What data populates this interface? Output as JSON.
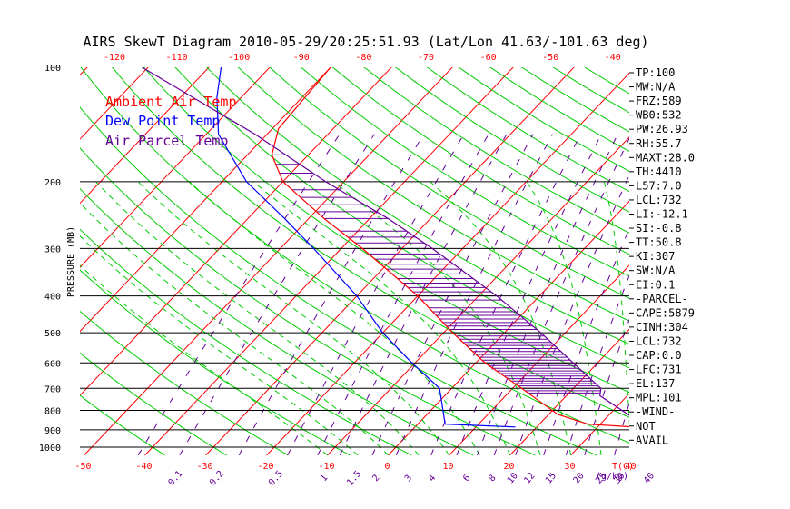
{
  "chart_data": {
    "type": "line",
    "title": "AIRS SkewT Diagram 2010-05-29/20:25:51.93 (Lat/Lon 41.63/-101.63 deg)",
    "ylabel": "PRESSURE (MB)",
    "xlabel": "T(C)",
    "mixing_ratio_unit": "(g/kg)",
    "y_scale": "log",
    "ylim": [
      1000,
      100
    ],
    "pressure_ticks": [
      100,
      200,
      300,
      400,
      500,
      600,
      700,
      800,
      900,
      1000
    ],
    "bottom_temperature_ticks": [
      -50,
      -40,
      -30,
      -20,
      -10,
      0,
      10,
      20,
      30,
      40
    ],
    "top_temperature_ticks": [
      -120,
      -110,
      -100,
      -90,
      -80,
      -70,
      -60,
      -50,
      -40
    ],
    "mixing_ratio_ticks": [
      "0.1",
      "0.2",
      "0.5",
      "1",
      "1.5",
      "2",
      "3",
      "4",
      "6",
      "8",
      "10",
      "12",
      "15",
      "20",
      "25",
      "30",
      "40"
    ],
    "legend": [
      {
        "label": "Ambient Air Temp",
        "color": "#ff0000"
      },
      {
        "label": "Dew Point Temp",
        "color": "#0000ff"
      },
      {
        "label": "Air Parcel Temp",
        "color": "#660099"
      }
    ],
    "series": [
      {
        "name": "Ambient Air Temp",
        "color": "#ff0000",
        "points": [
          {
            "p": 890,
            "t": 38.5
          },
          {
            "p": 870,
            "t": 28.0
          },
          {
            "p": 820,
            "t": 21.5
          },
          {
            "p": 700,
            "t": 11.5
          },
          {
            "p": 600,
            "t": 1.5
          },
          {
            "p": 500,
            "t": -8.5
          },
          {
            "p": 400,
            "t": -20.0
          },
          {
            "p": 300,
            "t": -36.5
          },
          {
            "p": 250,
            "t": -47.5
          },
          {
            "p": 200,
            "t": -60.0
          },
          {
            "p": 170,
            "t": -66.0
          },
          {
            "p": 145,
            "t": -69.0
          },
          {
            "p": 100,
            "t": -70.0
          }
        ]
      },
      {
        "name": "Dew Point Temp",
        "color": "#0000ff",
        "points": [
          {
            "p": 885,
            "t": 16.5
          },
          {
            "p": 870,
            "t": 4.5
          },
          {
            "p": 700,
            "t": -2.0
          },
          {
            "p": 600,
            "t": -10.5
          },
          {
            "p": 500,
            "t": -20.0
          },
          {
            "p": 400,
            "t": -30.0
          },
          {
            "p": 300,
            "t": -44.5
          },
          {
            "p": 250,
            "t": -54.0
          },
          {
            "p": 200,
            "t": -66.0
          },
          {
            "p": 150,
            "t": -78.0
          },
          {
            "p": 120,
            "t": -84.0
          },
          {
            "p": 100,
            "t": -88.0
          }
        ]
      },
      {
        "name": "Air Parcel Temp",
        "color": "#660099",
        "points": [
          {
            "p": 890,
            "t": 38.5
          },
          {
            "p": 732,
            "t": 25.5
          },
          {
            "p": 700,
            "t": 24.5
          },
          {
            "p": 600,
            "t": 16.0
          },
          {
            "p": 500,
            "t": 6.0
          },
          {
            "p": 400,
            "t": -7.0
          },
          {
            "p": 300,
            "t": -25.0
          },
          {
            "p": 250,
            "t": -37.0
          },
          {
            "p": 200,
            "t": -53.0
          },
          {
            "p": 150,
            "t": -72.0
          },
          {
            "p": 100,
            "t": -101.0
          }
        ]
      }
    ]
  },
  "sidebar": [
    "TP:100",
    "MW:N/A",
    "FRZ:589",
    "WB0:532",
    "PW:26.93",
    "RH:55.7",
    "MAXT:28.0",
    "TH:4410",
    "L57:7.0",
    "LCL:732",
    "LI:-12.1",
    "SI:-0.8",
    "TT:50.8",
    "KI:307",
    "SW:N/A",
    "EI:0.1",
    "-PARCEL-",
    "CAPE:5879",
    "CINH:304",
    "LCL:732",
    "CAP:0.0",
    "LFC:731",
    "EL:137",
    "MPL:101",
    "-WIND-",
    "NOT",
    "AVAIL"
  ],
  "colors": {
    "isotherm": "#ff0000",
    "dry_adiabat": "#00cc00",
    "moist_adiabat": "#00cc00",
    "mixing_ratio": "#660099",
    "top_ticks": "#ff0000",
    "bottom_ticks": "#ff0000",
    "cape_hatch": "#660099"
  }
}
